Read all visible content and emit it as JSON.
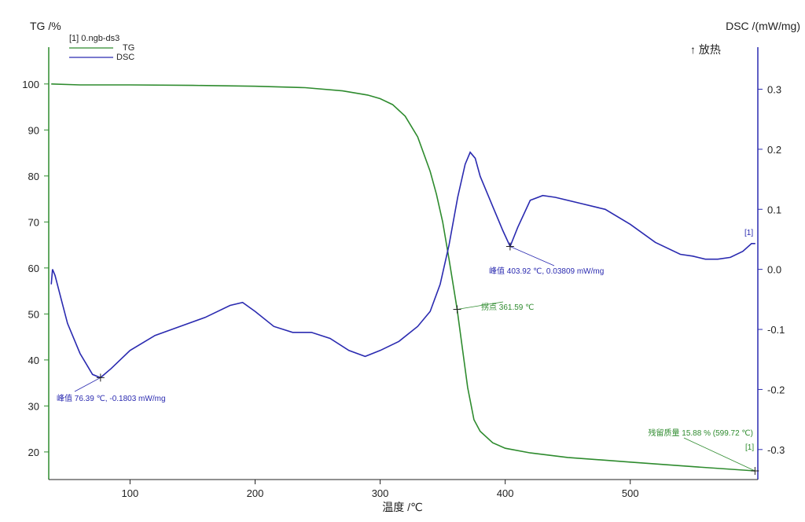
{
  "chart_data": {
    "type": "line",
    "title": "",
    "xlabel": "温度 /℃",
    "ylabel_left": "TG /%",
    "ylabel_right": "DSC /(mW/mg)",
    "exo_label": "↑ 放热",
    "xlim": [
      35,
      602
    ],
    "ylim_left": [
      14,
      108
    ],
    "ylim_right": [
      -0.35,
      0.37
    ],
    "x_ticks": [
      100,
      200,
      300,
      400,
      500
    ],
    "y_ticks_left": [
      20,
      30,
      40,
      50,
      60,
      70,
      80,
      90,
      100
    ],
    "y_ticks_right": [
      -0.3,
      -0.2,
      -0.1,
      0.0,
      0.1,
      0.2,
      0.3
    ],
    "y_ticks_right_labels": [
      "-0.3",
      "-0.2",
      "-0.1",
      "0.0",
      "0.1",
      "0.2",
      "0.3"
    ],
    "legend": {
      "header": "[1] 0.ngb-ds3",
      "position": "top-left",
      "entries": [
        {
          "name": "TG",
          "color": "#2e8b2e"
        },
        {
          "name": "DSC",
          "color": "#2a2ab0"
        }
      ]
    },
    "series": [
      {
        "name": "TG",
        "axis": "left",
        "color": "#2e8b2e",
        "x": [
          37,
          60,
          100,
          150,
          200,
          240,
          270,
          290,
          300,
          310,
          320,
          330,
          340,
          345,
          350,
          355,
          361.59,
          366,
          370,
          375,
          380,
          390,
          400,
          420,
          450,
          500,
          550,
          599.72
        ],
        "y": [
          100,
          99.8,
          99.8,
          99.7,
          99.5,
          99.2,
          98.5,
          97.6,
          96.8,
          95.5,
          93.0,
          88.5,
          81.0,
          76.0,
          70.0,
          62.0,
          51.0,
          42.0,
          34.0,
          27.0,
          24.5,
          22.0,
          20.8,
          19.8,
          18.8,
          17.8,
          16.8,
          15.88
        ]
      },
      {
        "name": "DSC",
        "axis": "right",
        "color": "#2a2ab0",
        "x": [
          37,
          38,
          40,
          45,
          50,
          60,
          70,
          76.39,
          85,
          100,
          120,
          140,
          160,
          180,
          190,
          200,
          215,
          230,
          245,
          260,
          275,
          288,
          300,
          315,
          330,
          340,
          348,
          355,
          362,
          368,
          372,
          376,
          380,
          390,
          398,
          403.92,
          410,
          420,
          430,
          440,
          460,
          480,
          500,
          520,
          540,
          550,
          560,
          570,
          580,
          590,
          597,
          600
        ],
        "y": [
          -0.025,
          0.0,
          -0.01,
          -0.05,
          -0.09,
          -0.14,
          -0.175,
          -0.1803,
          -0.165,
          -0.135,
          -0.11,
          -0.095,
          -0.08,
          -0.06,
          -0.055,
          -0.07,
          -0.095,
          -0.105,
          -0.105,
          -0.115,
          -0.135,
          -0.145,
          -0.135,
          -0.12,
          -0.095,
          -0.07,
          -0.025,
          0.04,
          0.12,
          0.175,
          0.195,
          0.185,
          0.155,
          0.105,
          0.065,
          0.03809,
          0.07,
          0.115,
          0.123,
          0.12,
          0.11,
          0.1,
          0.075,
          0.045,
          0.025,
          0.022,
          0.017,
          0.017,
          0.02,
          0.03,
          0.043,
          0.043
        ]
      }
    ],
    "annotations": [
      {
        "series": "DSC",
        "x": 76.39,
        "y": -0.1803,
        "text": "峰值 76.39 ℃, -0.1803 mW/mg"
      },
      {
        "series": "DSC",
        "x": 403.92,
        "y": 0.03809,
        "text": "峰值 403.92 ℃, 0.03809 mW/mg"
      },
      {
        "series": "TG",
        "x": 361.59,
        "y": 51.0,
        "text": "拐点 361.59 ℃"
      },
      {
        "series": "TG",
        "x": 599.72,
        "y": 15.88,
        "text": "残留质量 15.88 % (599.72 ℃)"
      }
    ],
    "end_markers": [
      "[1]",
      "[1]"
    ],
    "grid": false
  }
}
